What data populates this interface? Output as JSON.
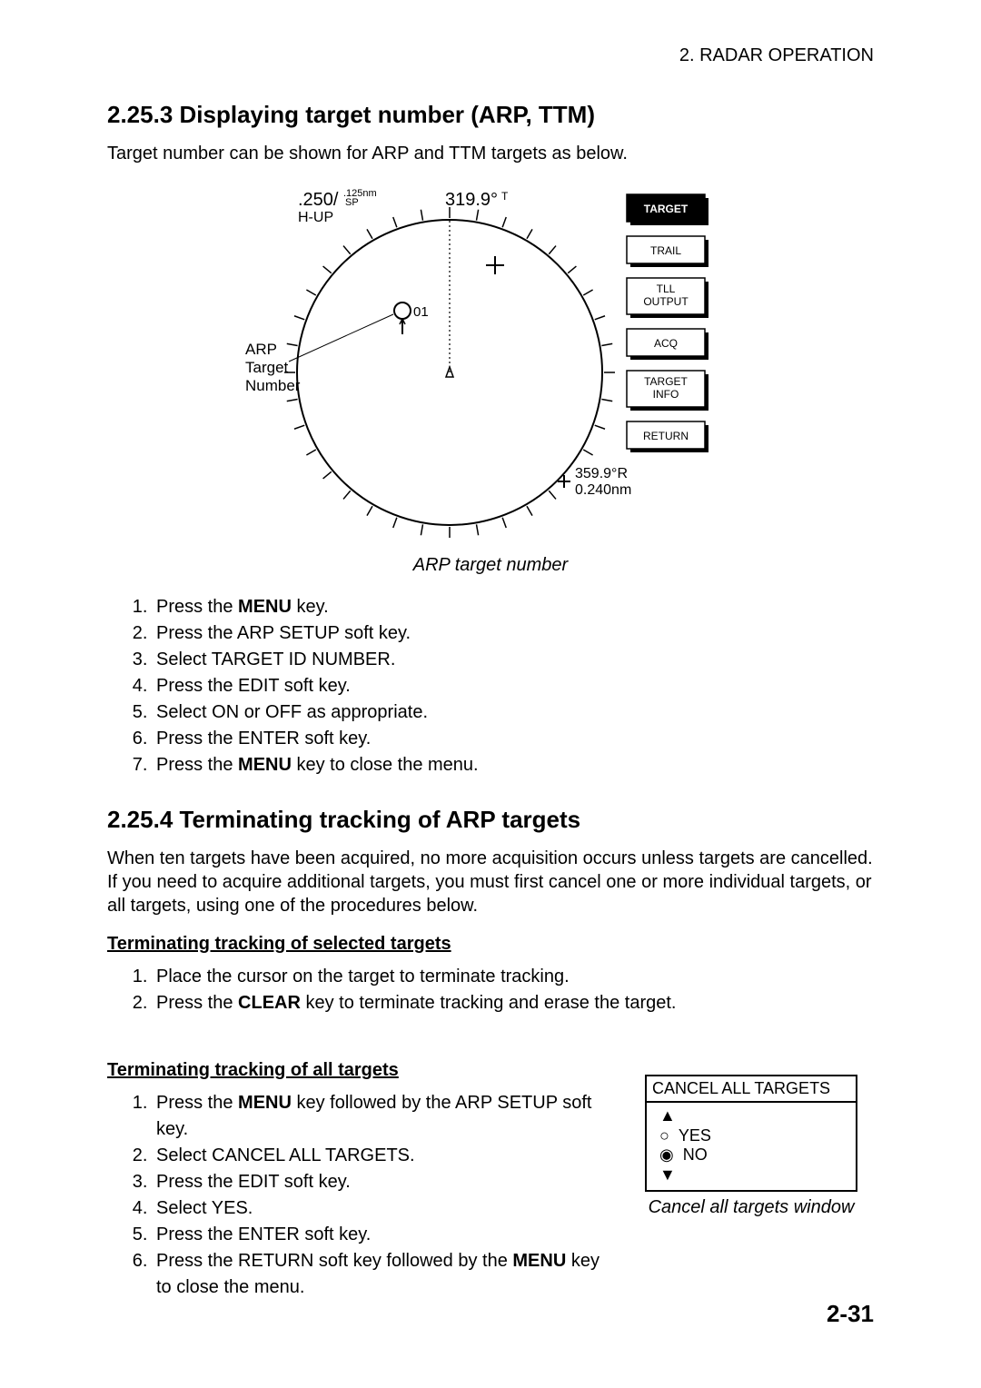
{
  "header": {
    "chapter": "2. RADAR OPERATION"
  },
  "section1": {
    "number": "2.25.3",
    "title": "Displaying target number (ARP, TTM)",
    "intro": "Target number can be shown for ARP and TTM targets as below.",
    "figure": {
      "range": ".250/",
      "sp": "SP",
      "sp_sub": ".125nm",
      "heading": "319.9°",
      "heading_suffix": "T",
      "hup": "H-UP",
      "target_id": "01",
      "side_label": "ARP\nTarget\nNumber",
      "softkeys": [
        "TARGET",
        "TRAIL",
        "TLL\nOUTPUT",
        "ACQ",
        "TARGET\nINFO",
        "RETURN"
      ],
      "softkey_highlight_index": 0,
      "cursor_bearing": "359.9°R",
      "cursor_range": "0.240nm",
      "caption": "ARP target number",
      "colors": {
        "stroke": "#000000",
        "bg": "#ffffff",
        "highlight_bg": "#000000",
        "highlight_text": "#ffffff"
      }
    },
    "steps": [
      {
        "pre": "Press the ",
        "bold": "MENU",
        "post": " key."
      },
      {
        "pre": "Press the ARP SETUP soft key.",
        "bold": "",
        "post": ""
      },
      {
        "pre": "Select TARGET ID NUMBER.",
        "bold": "",
        "post": ""
      },
      {
        "pre": "Press the EDIT soft key.",
        "bold": "",
        "post": ""
      },
      {
        "pre": "Select ON or OFF as appropriate.",
        "bold": "",
        "post": ""
      },
      {
        "pre": "Press the ENTER soft key.",
        "bold": "",
        "post": ""
      },
      {
        "pre": "Press the ",
        "bold": "MENU",
        "post": " key to close the menu."
      }
    ]
  },
  "section2": {
    "number": "2.25.4",
    "title": "Terminating tracking of ARP targets",
    "intro": "When ten targets have been acquired, no more acquisition occurs unless targets are cancelled. If you need to acquire additional targets, you must first cancel one or more individual targets, or all targets, using one of the procedures below.",
    "sub1": {
      "heading": "Terminating tracking of selected targets",
      "steps": [
        {
          "pre": "Place the cursor on the target to terminate tracking.",
          "bold": "",
          "post": ""
        },
        {
          "pre": "Press the ",
          "bold": "CLEAR",
          "post": " key to terminate tracking and erase the target."
        }
      ]
    },
    "sub2": {
      "heading": "Terminating tracking of all targets",
      "steps_left": [
        {
          "pre": "Press the ",
          "bold": "MENU",
          "post": " key followed by the ARP SETUP soft key."
        },
        {
          "pre": "Select CANCEL ALL TARGETS.",
          "bold": "",
          "post": ""
        },
        {
          "pre": "Press the EDIT soft key.",
          "bold": "",
          "post": ""
        },
        {
          "pre": "Select YES.",
          "bold": "",
          "post": ""
        },
        {
          "pre": "Press the ENTER soft key.",
          "bold": "",
          "post": ""
        },
        {
          "pre": "Press the RETURN soft key followed by the ",
          "bold": "MENU",
          "post": " key to close the menu."
        }
      ],
      "dialog": {
        "title": "CANCEL ALL TARGETS",
        "options": [
          "YES",
          "NO"
        ],
        "selected_index": 1,
        "caption": "Cancel all targets window"
      }
    }
  },
  "page_number": "2-31"
}
